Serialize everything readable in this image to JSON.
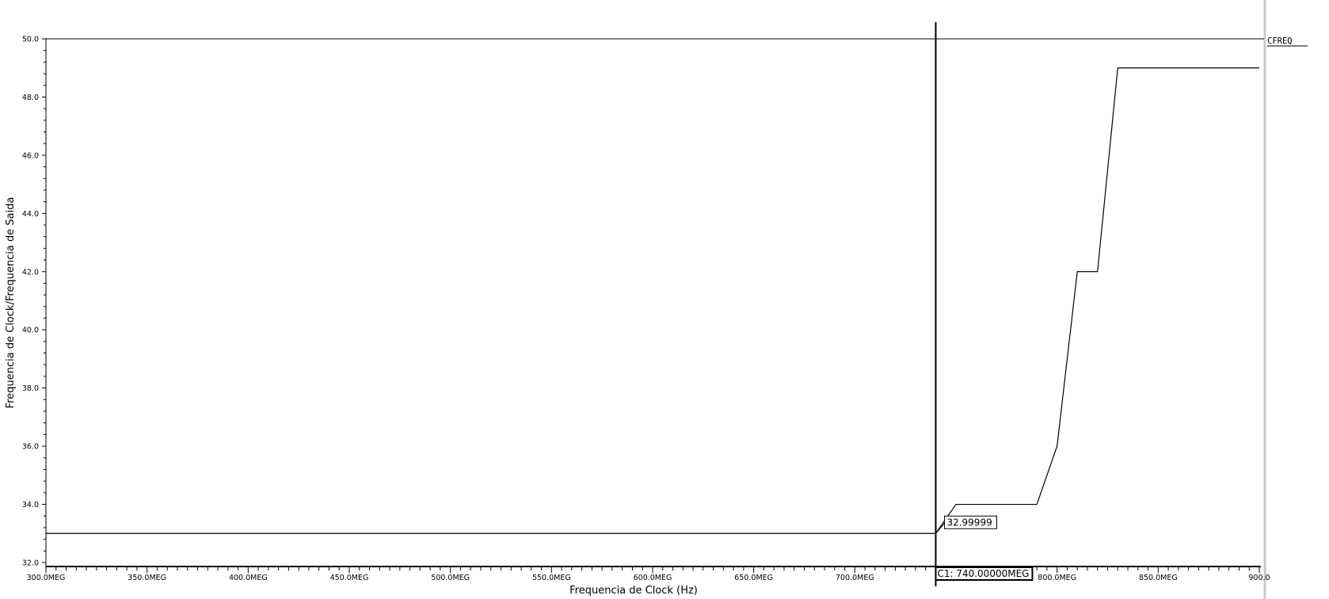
{
  "chart_data": {
    "type": "line",
    "xlabel": "Frequencia de Clock (Hz)",
    "ylabel": "Frequencia de Clock/Frequencia de Saida",
    "xlim": [
      300,
      900
    ],
    "ylim": [
      32,
      50
    ],
    "x_ticks": [
      {
        "value": 300,
        "label": "300.0MEG"
      },
      {
        "value": 350,
        "label": "350.0MEG"
      },
      {
        "value": 400,
        "label": "400.0MEG"
      },
      {
        "value": 450,
        "label": "450.0MEG"
      },
      {
        "value": 500,
        "label": "500.0MEG"
      },
      {
        "value": 550,
        "label": "550.0MEG"
      },
      {
        "value": 600,
        "label": "600.0MEG"
      },
      {
        "value": 650,
        "label": "650.0MEG"
      },
      {
        "value": 700,
        "label": "700.0MEG"
      },
      {
        "value": 800,
        "label": "800.0MEG"
      },
      {
        "value": 850,
        "label": "850.0MEG"
      },
      {
        "value": 900,
        "label": "900.0"
      }
    ],
    "y_ticks": [
      {
        "value": 32,
        "label": "32.0"
      },
      {
        "value": 34,
        "label": "34.0"
      },
      {
        "value": 36,
        "label": "36.0"
      },
      {
        "value": 38,
        "label": "38.0"
      },
      {
        "value": 40,
        "label": "40.0"
      },
      {
        "value": 42,
        "label": "42.0"
      },
      {
        "value": 44,
        "label": "44.0"
      },
      {
        "value": 46,
        "label": "46.0"
      },
      {
        "value": 48,
        "label": "48.0"
      },
      {
        "value": 50,
        "label": "50.0"
      }
    ],
    "series": [
      {
        "name": "CFREQ",
        "color": "#000000",
        "x": [
          300,
          740,
          750,
          790,
          800,
          810,
          820,
          830,
          900
        ],
        "y": [
          33,
          33,
          34,
          34,
          36,
          42,
          42,
          49,
          49
        ]
      }
    ],
    "cursor": {
      "x": 740,
      "label": "C1: 740.00000MEG",
      "value_label": "32.99999"
    }
  }
}
